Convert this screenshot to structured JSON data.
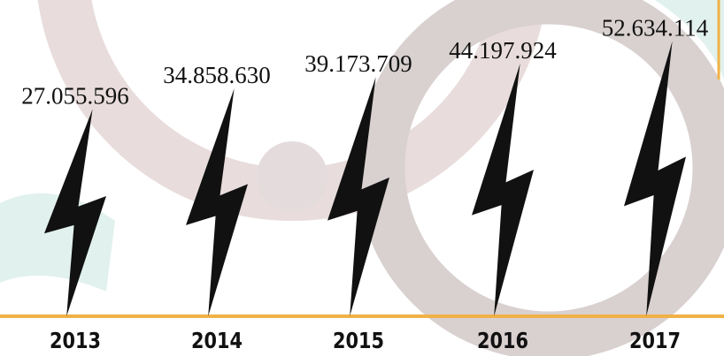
{
  "chart_data": {
    "type": "bar",
    "categories": [
      "2013",
      "2014",
      "2015",
      "2016",
      "2017"
    ],
    "values": [
      27055596,
      34858630,
      39173709,
      44197924,
      52634114
    ],
    "value_labels": [
      "27.055.596",
      "34.858.630",
      "39.173.709",
      "44.197.924",
      "52.634.114"
    ],
    "color": "#111111"
  }
}
